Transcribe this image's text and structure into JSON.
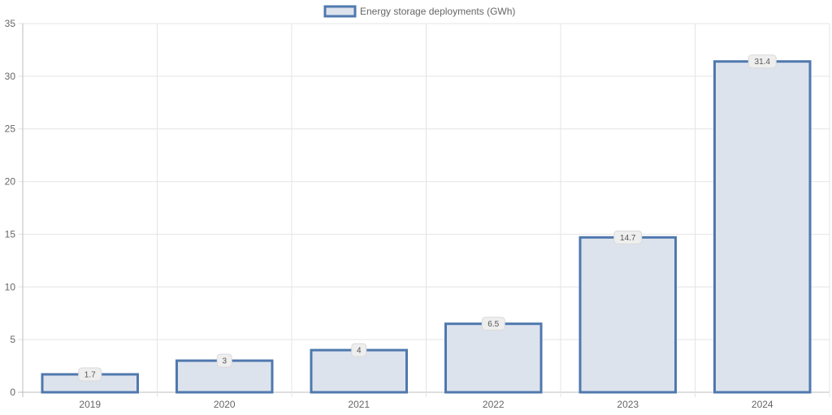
{
  "chart_data": {
    "type": "bar",
    "legend": {
      "position": "top",
      "entries": [
        {
          "label": "Energy storage deployments (GWh)",
          "fill": "#dde3ed",
          "stroke": "#4f79ae"
        }
      ]
    },
    "categories": [
      "2019",
      "2020",
      "2021",
      "2022",
      "2023",
      "2024"
    ],
    "series": [
      {
        "name": "Energy storage deployments (GWh)",
        "values": [
          1.7,
          3,
          4,
          6.5,
          14.7,
          31.4
        ],
        "data_labels": [
          "1.7",
          "3",
          "4",
          "6.5",
          "14.7",
          "31.4"
        ],
        "fill": "#dde3ed",
        "stroke": "#4f79ae"
      }
    ],
    "ylim": [
      0,
      35
    ],
    "yticks": [
      0,
      5,
      10,
      15,
      20,
      25,
      30,
      35
    ],
    "ytick_labels": [
      "0",
      "5",
      "10",
      "15",
      "20",
      "25",
      "30",
      "35"
    ],
    "xlabel": "",
    "ylabel": "",
    "grid": true,
    "colors": {
      "grid": "#e4e4e4",
      "axis": "#bdbdbd",
      "text": "#666666"
    }
  }
}
